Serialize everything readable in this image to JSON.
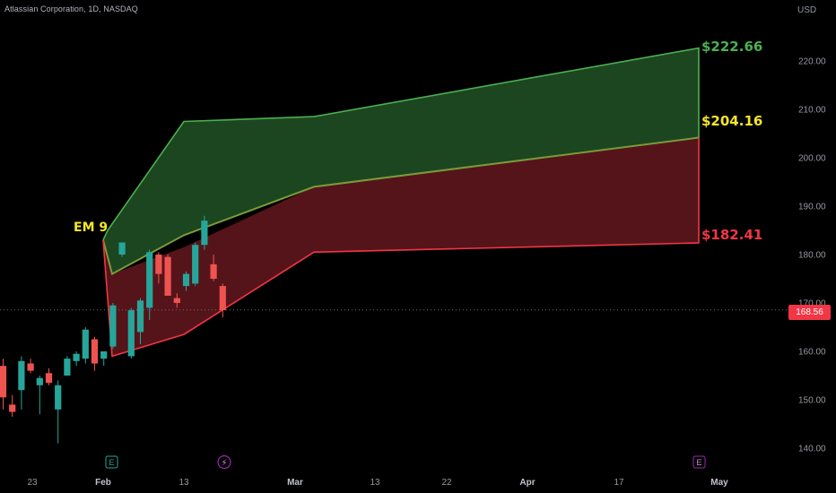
{
  "header": {
    "title": "Atlassian Corporation, 1D, NASDAQ",
    "currency": "USD"
  },
  "current_price": "168.56",
  "annotations": {
    "em_label": "EM 9",
    "upper": "$222.66",
    "mid": "$204.16",
    "lower": "$182.41"
  },
  "events": {
    "earnings_early": "E",
    "dividend": "⚡",
    "earnings_late": "E"
  },
  "colors": {
    "up": "#26a69a",
    "down": "#ef5350",
    "green_band": "#4caf50",
    "red_band": "#f23645",
    "yellow": "#f5e62a"
  },
  "chart_data": {
    "type": "candlestick",
    "title": "Atlassian Corporation, 1D, NASDAQ",
    "ylim": [
      135,
      228
    ],
    "y_ticks": [
      140,
      150,
      160,
      170,
      180,
      190,
      200,
      210,
      220
    ],
    "y_tick_labels": [
      "140.00",
      "150.00",
      "160.00",
      "170.00",
      "180.00",
      "190.00",
      "200.00",
      "210.00",
      "220.00"
    ],
    "x_tick_labels": [
      {
        "label": "23",
        "bold": false
      },
      {
        "label": "Feb",
        "bold": true
      },
      {
        "label": "13",
        "bold": false
      },
      {
        "label": "Mar",
        "bold": true
      },
      {
        "label": "13",
        "bold": false
      },
      {
        "label": "22",
        "bold": false
      },
      {
        "label": "Apr",
        "bold": true
      },
      {
        "label": "17",
        "bold": false
      },
      {
        "label": "May",
        "bold": true
      }
    ],
    "candles": [
      {
        "o": 157.0,
        "h": 158.5,
        "l": 148.0,
        "c": 150.5
      },
      {
        "o": 149.0,
        "h": 151.0,
        "l": 146.5,
        "c": 147.5
      },
      {
        "o": 152.0,
        "h": 159.0,
        "l": 148.0,
        "c": 158.0
      },
      {
        "o": 157.5,
        "h": 158.5,
        "l": 155.5,
        "c": 156.0
      },
      {
        "o": 153.0,
        "h": 155.0,
        "l": 147.0,
        "c": 154.5
      },
      {
        "o": 155.5,
        "h": 156.5,
        "l": 153.0,
        "c": 153.5
      },
      {
        "o": 148.0,
        "h": 154.0,
        "l": 141.0,
        "c": 153.0
      },
      {
        "o": 155.0,
        "h": 159.0,
        "l": 155.0,
        "c": 158.5
      },
      {
        "o": 158.0,
        "h": 160.0,
        "l": 157.0,
        "c": 159.5
      },
      {
        "o": 158.5,
        "h": 165.0,
        "l": 157.5,
        "c": 164.5
      },
      {
        "o": 162.5,
        "h": 163.0,
        "l": 156.0,
        "c": 157.5
      },
      {
        "o": 158.5,
        "h": 160.0,
        "l": 157.0,
        "c": 160.0
      },
      {
        "o": 161.0,
        "h": 170.0,
        "l": 160.5,
        "c": 169.5
      },
      {
        "o": 180.0,
        "h": 182.5,
        "l": 179.5,
        "c": 182.5
      },
      {
        "o": 159.0,
        "h": 169.0,
        "l": 158.5,
        "c": 168.5
      },
      {
        "o": 164.0,
        "h": 171.0,
        "l": 161.5,
        "c": 170.5
      },
      {
        "o": 169.0,
        "h": 181.0,
        "l": 166.5,
        "c": 180.5
      },
      {
        "o": 180.0,
        "h": 180.5,
        "l": 174.0,
        "c": 176.0
      },
      {
        "o": 179.5,
        "h": 180.0,
        "l": 172.0,
        "c": 171.5
      },
      {
        "o": 171.0,
        "h": 172.0,
        "l": 169.0,
        "c": 170.0
      },
      {
        "o": 173.5,
        "h": 176.5,
        "l": 172.5,
        "c": 176.0
      },
      {
        "o": 174.0,
        "h": 182.5,
        "l": 173.5,
        "c": 182.0
      },
      {
        "o": 182.0,
        "h": 188.0,
        "l": 181.0,
        "c": 187.0
      },
      {
        "o": 178.0,
        "h": 180.0,
        "l": 174.5,
        "c": 175.0
      },
      {
        "o": 173.5,
        "h": 174.0,
        "l": 167.0,
        "c": 168.5
      }
    ],
    "band_upper": [
      185,
      207.5,
      208.5,
      222.66
    ],
    "band_mid": [
      183.0,
      184.0,
      194.0,
      204.16
    ],
    "band_mid_low": [
      176.0,
      181.5,
      194.0,
      204.16
    ],
    "band_lower": [
      159.0,
      163.5,
      180.5,
      182.41
    ],
    "current": 168.56
  }
}
